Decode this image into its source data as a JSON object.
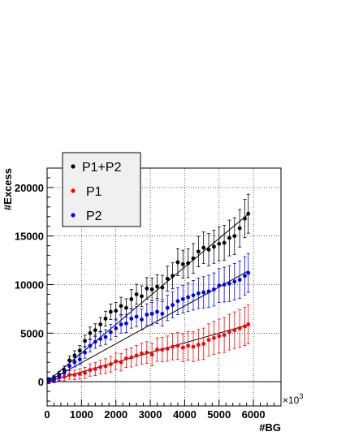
{
  "chart_data": {
    "type": "scatter",
    "xlabel": "#BG",
    "ylabel": "#Excess",
    "x_multiplier_label": "×10",
    "x_multiplier_exp": "3",
    "xlim": [
      0,
      6800
    ],
    "ylim": [
      -2500,
      22000
    ],
    "x_ticks": [
      0,
      1000,
      2000,
      3000,
      4000,
      5000,
      6000
    ],
    "x_tick_labels": [
      "0",
      "1000",
      "2000",
      "3000",
      "4000",
      "5000",
      "6000"
    ],
    "y_ticks": [
      0,
      5000,
      10000,
      15000,
      20000
    ],
    "y_tick_labels": [
      "0",
      "5000",
      "10000",
      "15000",
      "20000"
    ],
    "grid": true,
    "legend_position": "top-left",
    "series": [
      {
        "name": "P1+P2",
        "color": "#000000",
        "fit_slope": 2.95,
        "points": [
          [
            50,
            150
          ],
          [
            200,
            350
          ],
          [
            350,
            700
          ],
          [
            500,
            1200
          ],
          [
            650,
            2200
          ],
          [
            800,
            2700
          ],
          [
            950,
            3200
          ],
          [
            1100,
            4200
          ],
          [
            1250,
            5000
          ],
          [
            1400,
            5300
          ],
          [
            1550,
            5900
          ],
          [
            1700,
            6500
          ],
          [
            1850,
            7200
          ],
          [
            2000,
            7300
          ],
          [
            2150,
            7800
          ],
          [
            2300,
            7600
          ],
          [
            2450,
            8500
          ],
          [
            2600,
            9000
          ],
          [
            2750,
            8800
          ],
          [
            2900,
            9600
          ],
          [
            3050,
            9500
          ],
          [
            3200,
            9800
          ],
          [
            3350,
            9700
          ],
          [
            3500,
            10600
          ],
          [
            3650,
            10900
          ],
          [
            3800,
            12300
          ],
          [
            3950,
            12100
          ],
          [
            4100,
            12200
          ],
          [
            4250,
            12700
          ],
          [
            4400,
            13400
          ],
          [
            4550,
            13800
          ],
          [
            4700,
            13600
          ],
          [
            4850,
            13900
          ],
          [
            5000,
            14200
          ],
          [
            5150,
            14300
          ],
          [
            5300,
            14800
          ],
          [
            5450,
            15000
          ],
          [
            5600,
            15800
          ],
          [
            5750,
            16800
          ],
          [
            5850,
            17300
          ]
        ]
      },
      {
        "name": "P1",
        "color": "#ff0000",
        "fit_slope": 1.0,
        "points": [
          [
            50,
            50
          ],
          [
            200,
            200
          ],
          [
            350,
            400
          ],
          [
            500,
            500
          ],
          [
            650,
            700
          ],
          [
            800,
            700
          ],
          [
            950,
            800
          ],
          [
            1100,
            900
          ],
          [
            1250,
            1200
          ],
          [
            1400,
            1300
          ],
          [
            1550,
            1500
          ],
          [
            1700,
            1600
          ],
          [
            1850,
            1800
          ],
          [
            2000,
            2100
          ],
          [
            2150,
            2000
          ],
          [
            2300,
            2400
          ],
          [
            2450,
            2500
          ],
          [
            2600,
            2700
          ],
          [
            2750,
            2900
          ],
          [
            2900,
            3000
          ],
          [
            3050,
            2800
          ],
          [
            3200,
            3300
          ],
          [
            3350,
            3300
          ],
          [
            3500,
            3400
          ],
          [
            3650,
            3600
          ],
          [
            3800,
            3700
          ],
          [
            3950,
            3500
          ],
          [
            4100,
            3700
          ],
          [
            4250,
            3600
          ],
          [
            4400,
            3800
          ],
          [
            4550,
            3900
          ],
          [
            4700,
            4300
          ],
          [
            4850,
            4500
          ],
          [
            5000,
            4700
          ],
          [
            5150,
            4800
          ],
          [
            5300,
            5100
          ],
          [
            5450,
            5300
          ],
          [
            5600,
            5500
          ],
          [
            5750,
            5700
          ],
          [
            5850,
            5900
          ]
        ]
      },
      {
        "name": "P2",
        "color": "#0000ff",
        "fit_slope": 1.95,
        "points": [
          [
            50,
            100
          ],
          [
            200,
            250
          ],
          [
            350,
            500
          ],
          [
            500,
            900
          ],
          [
            650,
            1600
          ],
          [
            800,
            2000
          ],
          [
            950,
            2300
          ],
          [
            1100,
            3000
          ],
          [
            1250,
            3700
          ],
          [
            1400,
            4100
          ],
          [
            1550,
            4400
          ],
          [
            1700,
            4600
          ],
          [
            1850,
            5100
          ],
          [
            2000,
            5500
          ],
          [
            2150,
            5900
          ],
          [
            2300,
            6000
          ],
          [
            2450,
            6500
          ],
          [
            2600,
            6700
          ],
          [
            2750,
            6400
          ],
          [
            2900,
            6900
          ],
          [
            3050,
            7000
          ],
          [
            3200,
            7200
          ],
          [
            3350,
            7000
          ],
          [
            3500,
            7600
          ],
          [
            3650,
            7900
          ],
          [
            3800,
            8300
          ],
          [
            3950,
            8500
          ],
          [
            4100,
            8700
          ],
          [
            4250,
            8900
          ],
          [
            4400,
            9100
          ],
          [
            4550,
            9200
          ],
          [
            4700,
            9300
          ],
          [
            4850,
            9500
          ],
          [
            5000,
            9900
          ],
          [
            5150,
            10000
          ],
          [
            5300,
            10100
          ],
          [
            5450,
            10300
          ],
          [
            5600,
            10500
          ],
          [
            5750,
            10900
          ],
          [
            5850,
            11200
          ]
        ]
      }
    ]
  }
}
